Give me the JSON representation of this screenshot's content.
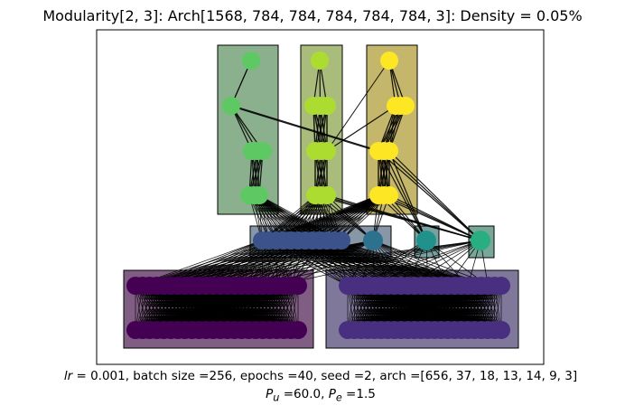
{
  "title": "Modularity[2, 3]: Arch[1568, 784, 784, 784, 784, 784, 3]: Density = 0.05%",
  "caption": {
    "lr_symbol": "lr",
    "line1_rest": " =  0.001, batch size =256, epochs =40, seed =2, arch =[656, 37, 18, 13, 14, 9, 3]",
    "pu_symbol": "P",
    "pu_sub": "u",
    "pu_value": " =60.0, ",
    "pe_symbol": "P",
    "pe_sub": "e",
    "pe_value": " =1.5"
  },
  "colors": {
    "input_left": "#440154",
    "input_right": "#482f7f",
    "hidden_mid": "#3b528b",
    "hidden_teal1": "#2c728e",
    "hidden_teal2": "#21918c",
    "hidden_teal3": "#28ae80",
    "green_col": "#5ec962",
    "lime_col": "#addc30",
    "yellow_col": "#fde725"
  }
}
